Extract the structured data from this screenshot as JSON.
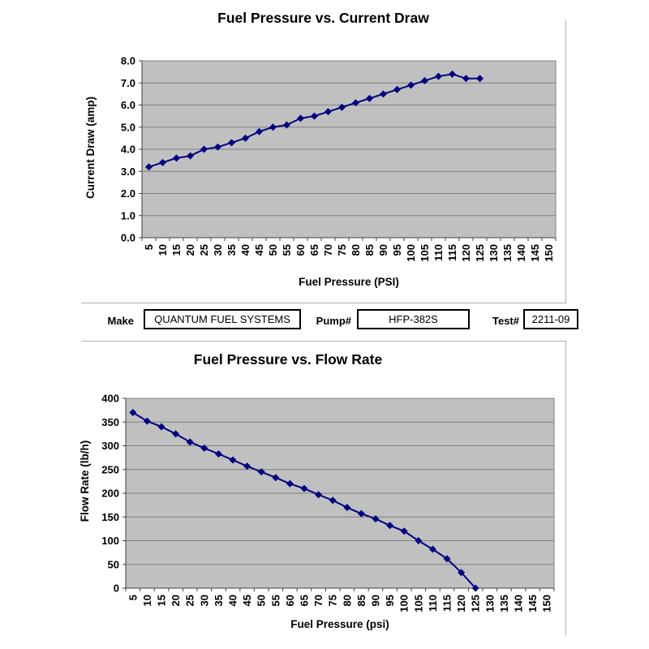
{
  "info_bar": {
    "make": {
      "label": "Make",
      "value": "QUANTUM FUEL SYSTEMS"
    },
    "pump": {
      "label": "Pump#",
      "value": "HFP-382S"
    },
    "test": {
      "label": "Test#",
      "value": "2211-09"
    }
  },
  "chart_data": [
    {
      "type": "line",
      "title": "Fuel Pressure vs. Current Draw",
      "xlabel": "Fuel Pressure (PSI)",
      "ylabel": "Current Draw (amp)",
      "x_categories": [
        "5",
        "10",
        "15",
        "20",
        "25",
        "30",
        "35",
        "40",
        "45",
        "50",
        "55",
        "60",
        "65",
        "70",
        "75",
        "80",
        "85",
        "90",
        "95",
        "100",
        "105",
        "110",
        "115",
        "120",
        "125",
        "130",
        "135",
        "140",
        "145",
        "150"
      ],
      "x": [
        5,
        10,
        15,
        20,
        25,
        30,
        35,
        40,
        45,
        50,
        55,
        60,
        65,
        70,
        75,
        80,
        85,
        90,
        95,
        100,
        105,
        110,
        115,
        120,
        125
      ],
      "values": [
        3.2,
        3.4,
        3.6,
        3.7,
        4.0,
        4.1,
        4.3,
        4.5,
        4.8,
        5.0,
        5.1,
        5.4,
        5.5,
        5.7,
        5.9,
        6.1,
        6.3,
        6.5,
        6.7,
        6.9,
        7.1,
        7.3,
        7.4,
        7.2,
        7.2
      ],
      "ylim": [
        0,
        8
      ],
      "ytick_labels": [
        "8.0",
        "7.0",
        "6.0",
        "5.0",
        "4.0",
        "3.0",
        "2.0",
        "1.0",
        "0.0"
      ],
      "grid": true,
      "legend": "none",
      "marker": "diamond",
      "series_color": "#000080",
      "plot_bg": "#c0c0c0",
      "grid_color": "#808080",
      "axis_color": "#404040"
    },
    {
      "type": "line",
      "title": "Fuel Pressure vs. Flow Rate",
      "xlabel": "Fuel Pressure (psi)",
      "ylabel": "Flow Rate (lb/h)",
      "x_categories": [
        "5",
        "10",
        "15",
        "20",
        "25",
        "30",
        "35",
        "40",
        "45",
        "50",
        "55",
        "60",
        "65",
        "70",
        "75",
        "80",
        "85",
        "90",
        "95",
        "100",
        "105",
        "110",
        "115",
        "120",
        "125",
        "130",
        "135",
        "140",
        "145",
        "150"
      ],
      "x": [
        5,
        10,
        15,
        20,
        25,
        30,
        35,
        40,
        45,
        50,
        55,
        60,
        65,
        70,
        75,
        80,
        85,
        90,
        95,
        100,
        105,
        110,
        115,
        120,
        125
      ],
      "values": [
        370,
        352,
        340,
        325,
        308,
        295,
        283,
        270,
        257,
        245,
        233,
        220,
        210,
        197,
        185,
        170,
        157,
        146,
        132,
        120,
        100,
        82,
        62,
        33,
        0
      ],
      "ylim": [
        0,
        400
      ],
      "ytick_labels": [
        "400",
        "350",
        "300",
        "250",
        "200",
        "150",
        "100",
        "50",
        "0"
      ],
      "grid": true,
      "legend": "none",
      "marker": "diamond",
      "series_color": "#000080",
      "plot_bg": "#c0c0c0",
      "grid_color": "#808080",
      "axis_color": "#404040"
    }
  ]
}
